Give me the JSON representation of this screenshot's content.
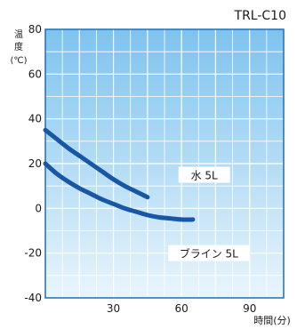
{
  "chart_data": {
    "type": "line",
    "title": "TRL-C10",
    "ylabel_chars": [
      "温",
      "度"
    ],
    "ylabel_unit": "(℃)",
    "xlabel": "時間(分)",
    "xlim": [
      0,
      105
    ],
    "ylim": [
      -40,
      80
    ],
    "x_ticks": [
      30,
      60,
      90
    ],
    "y_ticks": [
      80,
      60,
      40,
      20,
      0,
      -20,
      -40
    ],
    "grid": true,
    "series": [
      {
        "name": "水 5L",
        "x": [
          0,
          5,
          10,
          15,
          20,
          25,
          30,
          35,
          40,
          45
        ],
        "y": [
          35,
          31,
          27,
          23.5,
          20,
          16.5,
          13,
          10,
          7.5,
          5
        ]
      },
      {
        "name": "ブライン 5L",
        "x": [
          0,
          5,
          10,
          15,
          20,
          25,
          30,
          35,
          40,
          45,
          50,
          55,
          60,
          65
        ],
        "y": [
          20,
          15.5,
          12,
          9,
          6.5,
          4,
          2,
          0,
          -1.5,
          -3,
          -4,
          -4.5,
          -5,
          -5
        ]
      }
    ],
    "label_positions": [
      [
        70,
        15
      ],
      [
        72,
        -20
      ]
    ]
  }
}
